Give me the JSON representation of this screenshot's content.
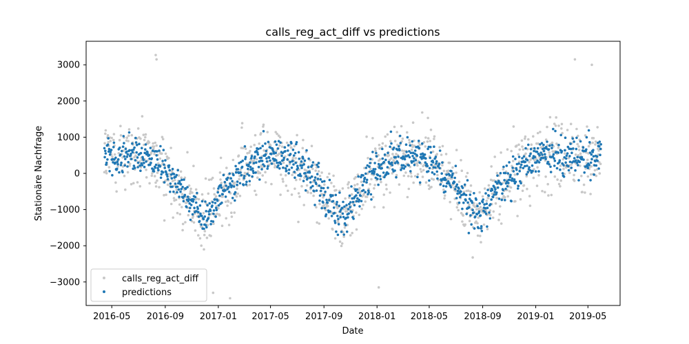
{
  "chart_data": {
    "type": "scatter",
    "title": "calls_reg_act_diff vs predictions",
    "xlabel": "Date",
    "ylabel": "Stationäre Nachfrage",
    "xlim": [
      "2016-03-03",
      "2019-07-14"
    ],
    "ylim": [
      -3650,
      3650
    ],
    "x_ticks": [
      "2016-05",
      "2016-09",
      "2017-01",
      "2017-05",
      "2017-09",
      "2018-01",
      "2018-05",
      "2018-09",
      "2019-01",
      "2019-05"
    ],
    "y_ticks": [
      3000,
      2000,
      1000,
      0,
      -1000,
      -2000,
      -3000
    ],
    "legend": {
      "position": "lower-left"
    },
    "grid": false,
    "colors": {
      "actual": "#c8c8c8",
      "predictions": "#1f77b4"
    },
    "series": [
      {
        "name": "calls_reg_act_diff",
        "x_start": "2016-04-14",
        "x_end": "2019-05-31",
        "trend": [
          [
            0,
            500
          ],
          [
            60,
            500
          ],
          [
            120,
            300
          ],
          [
            170,
            -300
          ],
          [
            230,
            -1300
          ],
          [
            260,
            -800
          ],
          [
            310,
            0
          ],
          [
            370,
            500
          ],
          [
            430,
            400
          ],
          [
            480,
            -200
          ],
          [
            550,
            -1200
          ],
          [
            580,
            -700
          ],
          [
            620,
            100
          ],
          [
            680,
            500
          ],
          [
            740,
            400
          ],
          [
            800,
            -200
          ],
          [
            865,
            -1300
          ],
          [
            900,
            -500
          ],
          [
            960,
            200
          ],
          [
            1000,
            500
          ],
          [
            1143,
            500
          ]
        ],
        "noise": 750,
        "step_days": 1,
        "outliers": [
          [
            "2016-08-10",
            3270
          ],
          [
            "2016-08-12",
            3150
          ],
          [
            "2016-12-20",
            -3300
          ],
          [
            "2017-01-28",
            -3450
          ],
          [
            "2018-01-05",
            -3150
          ],
          [
            "2019-04-01",
            3150
          ],
          [
            "2019-05-10",
            3000
          ]
        ]
      },
      {
        "name": "predictions",
        "x_start": "2016-04-14",
        "x_end": "2019-05-31",
        "trend": [
          [
            0,
            500
          ],
          [
            60,
            500
          ],
          [
            120,
            300
          ],
          [
            170,
            -300
          ],
          [
            230,
            -1300
          ],
          [
            260,
            -800
          ],
          [
            310,
            0
          ],
          [
            370,
            500
          ],
          [
            430,
            400
          ],
          [
            480,
            -200
          ],
          [
            550,
            -1200
          ],
          [
            580,
            -700
          ],
          [
            620,
            100
          ],
          [
            680,
            500
          ],
          [
            740,
            400
          ],
          [
            800,
            -200
          ],
          [
            865,
            -1300
          ],
          [
            900,
            -500
          ],
          [
            960,
            200
          ],
          [
            1000,
            500
          ],
          [
            1143,
            500
          ]
        ],
        "noise": 420,
        "step_days": 1
      }
    ]
  }
}
